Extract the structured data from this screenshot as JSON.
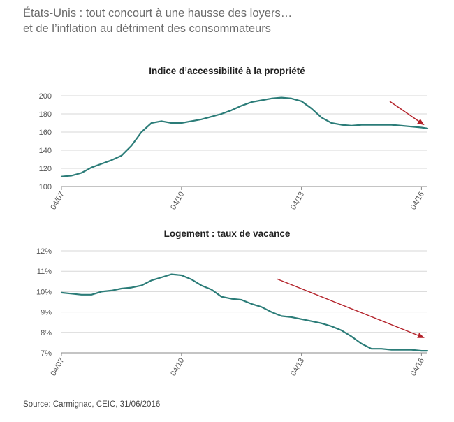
{
  "headline": {
    "line1": "États-Unis : tout concourt à une hausse des loyers…",
    "line2": "et de l’inflation au détriment des consommateurs"
  },
  "source": "Source: Carmignac, CEIC, 31/06/2016",
  "colors": {
    "line": "#2b7c78",
    "arrow": "#b32028",
    "grid": "#d7d7d7",
    "axis": "#888888"
  },
  "chart_data": [
    {
      "type": "line",
      "title": "Indice d’accessibilité à la propriété",
      "x_tick_labels": [
        "04/07",
        "04/10",
        "04/13",
        "04/16"
      ],
      "x_ticks": [
        2007.25,
        2010.25,
        2013.25,
        2016.25
      ],
      "xlim": [
        2007.25,
        2016.4
      ],
      "ylim": [
        100,
        200
      ],
      "y_ticks": [
        100,
        120,
        140,
        160,
        180,
        200
      ],
      "y_tick_labels": [
        "100",
        "120",
        "140",
        "160",
        "180",
        "200"
      ],
      "grid": true,
      "annotation": "downward red arrow at right",
      "series": [
        {
          "x": [
            2007.25,
            2007.5,
            2007.75,
            2008.0,
            2008.25,
            2008.5,
            2008.75,
            2009.0,
            2009.25,
            2009.5,
            2009.75,
            2010.0,
            2010.25,
            2010.5,
            2010.75,
            2011.0,
            2011.25,
            2011.5,
            2011.75,
            2012.0,
            2012.25,
            2012.5,
            2012.75,
            2013.0,
            2013.25,
            2013.5,
            2013.75,
            2014.0,
            2014.25,
            2014.5,
            2014.75,
            2015.0,
            2015.25,
            2015.5,
            2015.75,
            2016.0,
            2016.25,
            2016.4
          ],
          "values": [
            111,
            112,
            115,
            121,
            125,
            129,
            134,
            145,
            160,
            170,
            172,
            170,
            170,
            172,
            174,
            177,
            180,
            184,
            189,
            193,
            195,
            197,
            198,
            197,
            194,
            186,
            176,
            170,
            168,
            167,
            168,
            168,
            168,
            168,
            167,
            166,
            165,
            164
          ]
        }
      ]
    },
    {
      "type": "line",
      "title": "Logement : taux de vacance",
      "x_tick_labels": [
        "04/07",
        "04/10",
        "04/13",
        "04/16"
      ],
      "x_ticks": [
        2007.25,
        2010.25,
        2013.25,
        2016.25
      ],
      "xlim": [
        2007.25,
        2016.4
      ],
      "ylim": [
        7,
        12
      ],
      "y_ticks": [
        7,
        8,
        9,
        10,
        11,
        12
      ],
      "y_tick_labels": [
        "7%",
        "8%",
        "9%",
        "10%",
        "11%",
        "12%"
      ],
      "grid": true,
      "annotation": "downward red arrow at right",
      "series": [
        {
          "x": [
            2007.25,
            2007.5,
            2007.75,
            2008.0,
            2008.25,
            2008.5,
            2008.75,
            2009.0,
            2009.25,
            2009.5,
            2009.75,
            2010.0,
            2010.25,
            2010.5,
            2010.75,
            2011.0,
            2011.25,
            2011.5,
            2011.75,
            2012.0,
            2012.25,
            2012.5,
            2012.75,
            2013.0,
            2013.25,
            2013.5,
            2013.75,
            2014.0,
            2014.25,
            2014.5,
            2014.75,
            2015.0,
            2015.25,
            2015.5,
            2015.75,
            2016.0,
            2016.25,
            2016.4
          ],
          "values": [
            9.95,
            9.9,
            9.85,
            9.85,
            10.0,
            10.05,
            10.15,
            10.2,
            10.3,
            10.55,
            10.7,
            10.85,
            10.8,
            10.6,
            10.3,
            10.1,
            9.75,
            9.65,
            9.6,
            9.4,
            9.25,
            9.0,
            8.8,
            8.75,
            8.65,
            8.55,
            8.45,
            8.3,
            8.1,
            7.8,
            7.45,
            7.2,
            7.2,
            7.15,
            7.15,
            7.15,
            7.1,
            7.1
          ]
        }
      ]
    }
  ]
}
